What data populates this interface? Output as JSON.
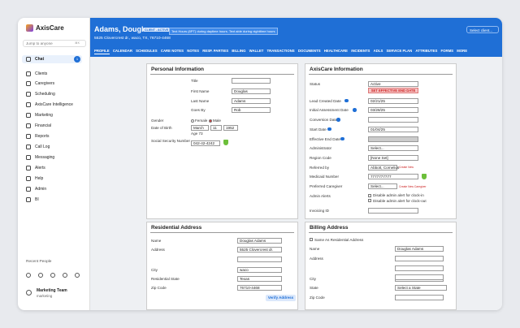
{
  "sidebar": {
    "logo": "AxisCare",
    "search": "Jump to anyone",
    "shortcut": "⌘K",
    "chat_badge": "1",
    "nav": [
      "Chat",
      "Clients",
      "Caregivers",
      "Scheduling",
      "AxisCare Intelligence",
      "Marketing",
      "Financial",
      "Reports",
      "Call Log",
      "Messaging",
      "Alerts",
      "Help",
      "Admin",
      "BI"
    ],
    "recent_people": "Recent People",
    "user": {
      "name": "Marketing Team",
      "role": "marketing"
    }
  },
  "header": {
    "name": "Adams, Douglas",
    "status_badge": "CLIENT - ACTIVE",
    "notice": "Text Hours (8PT) during daytime hours. Text able during nighttime hours",
    "address": "5525 Clovercrest dr., waco, TX, 76710-4468",
    "select_client": "Select client..."
  },
  "tabs": [
    "PROFILE",
    "CALENDAR",
    "SCHEDULES",
    "CARE NOTES",
    "NOTES",
    "RESP. PARTIES",
    "BILLING",
    "WALLET",
    "TRANSACTIONS",
    "DOCUMENTS",
    "HEALTHCARE",
    "INCIDENTS",
    "ADLS",
    "SERVICE PLAN",
    "ATTRIBUTES",
    "FORMS",
    "MORE"
  ],
  "personal": {
    "title": "Personal Information",
    "fields": [
      {
        "label": "Title"
      },
      {
        "label": "First Name",
        "value": "Douglas"
      },
      {
        "label": "Last Name",
        "value": "Adams"
      },
      {
        "label": "Goes By",
        "value": "Rob"
      }
    ],
    "gender": {
      "label": "Gender",
      "options": [
        "Female",
        "Male"
      ]
    },
    "dob": {
      "label": "Date of Birth",
      "month": "March",
      "day": "11",
      "year": "1952",
      "age": "Age 73"
    },
    "ssn": {
      "label": "Social Security Number",
      "value": "042-42-4242"
    }
  },
  "axiscare": {
    "title": "AxisCare Information",
    "fields": [
      {
        "label": "Status",
        "value": "Active",
        "action": "SET EFFECTIVE END DATE"
      },
      {
        "label": "Lead Created Date",
        "value": "02/21/25"
      },
      {
        "label": "Initial Assessment Date",
        "value": "03/28/25"
      },
      {
        "label": "Conversion Date"
      },
      {
        "label": "Start Date",
        "value": "01/04/25"
      },
      {
        "label": "Effective End Date"
      },
      {
        "label": "Administrator",
        "value": "Select..."
      },
      {
        "label": "Region Code",
        "value": "[None Set]"
      },
      {
        "label": "Referred by",
        "value": "Abbott, Cornelius",
        "link": "Create New"
      },
      {
        "label": "Medicaid Number",
        "value": "7777777777"
      },
      {
        "label": "Preferred Caregiver",
        "value": "Select...",
        "link": "Create New Caregiver"
      },
      {
        "label": "Admin Alerts",
        "options": [
          "Disable admin alert for clock-in",
          "Disable admin alert for clock-out"
        ]
      },
      {
        "label": "Invoicing ID"
      }
    ]
  },
  "residential": {
    "title": "Residential Address",
    "fields": [
      {
        "label": "Name",
        "value": "Douglas Adams"
      },
      {
        "label": "Address",
        "value": "5525 Clovercrest dr."
      },
      {
        "label": "City",
        "value": "waco"
      },
      {
        "label": "Residential State",
        "value": "Texas"
      },
      {
        "label": "Zip Code",
        "value": "76710-4468"
      }
    ],
    "button": "Verify Address"
  },
  "billing": {
    "title": "Billing Address",
    "same_as": "Same As Residential Address",
    "fields": [
      {
        "label": "Name",
        "value": "Douglas Adams"
      },
      {
        "label": "Address"
      },
      {
        "label": "City"
      },
      {
        "label": "State",
        "value": "Select a State"
      },
      {
        "label": "Zip Code"
      }
    ]
  }
}
